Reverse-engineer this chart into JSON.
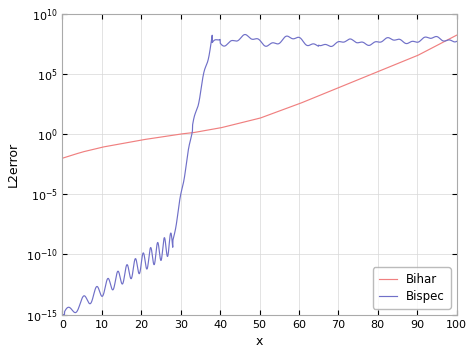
{
  "title": "",
  "xlabel": "x",
  "ylabel": "L2error",
  "xlim": [
    0,
    100
  ],
  "ylim_log": [
    -15,
    10
  ],
  "legend_labels": [
    "Bihar",
    "Bispec"
  ],
  "bihar_color": "#f08080",
  "bispec_color": "#7070c8",
  "background_color": "#ffffff",
  "axes_bg_color": "#ffffff",
  "linewidth": 0.85,
  "legend_fontsize": 8.5,
  "axis_fontsize": 9,
  "tick_fontsize": 8,
  "xticks": [
    0,
    10,
    20,
    30,
    40,
    50,
    60,
    70,
    80,
    90,
    100
  ],
  "ytick_powers": [
    -15,
    -10,
    -5,
    0,
    5,
    10
  ],
  "grid_color": "#d8d8d8",
  "spine_color": "#aaaaaa"
}
